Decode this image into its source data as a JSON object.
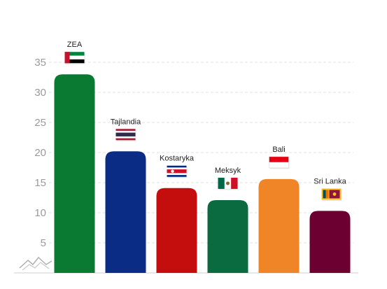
{
  "chart_data": {
    "type": "bar",
    "categories": [
      "ZEA",
      "Tajlandia",
      "Kostaryka",
      "Meksyk",
      "Bali",
      "Sri Lanka"
    ],
    "values": [
      33,
      20.2,
      14.1,
      12.1,
      15.6,
      10.3
    ],
    "colors": [
      "#0a7a32",
      "#0b2c84",
      "#c40d0d",
      "#0a6a40",
      "#f08528",
      "#6b0031"
    ],
    "flags": [
      "uae-flag",
      "thailand-flag",
      "costa-rica-flag",
      "mexico-flag",
      "indonesia-flag",
      "sri-lanka-flag"
    ],
    "yticks": [
      5,
      10,
      15,
      20,
      25,
      30,
      35
    ],
    "ylim": [
      0,
      35
    ],
    "grid": true,
    "title": "",
    "xlabel": "",
    "ylabel": ""
  },
  "watermark": {
    "icon": "mountain-logo-icon"
  }
}
